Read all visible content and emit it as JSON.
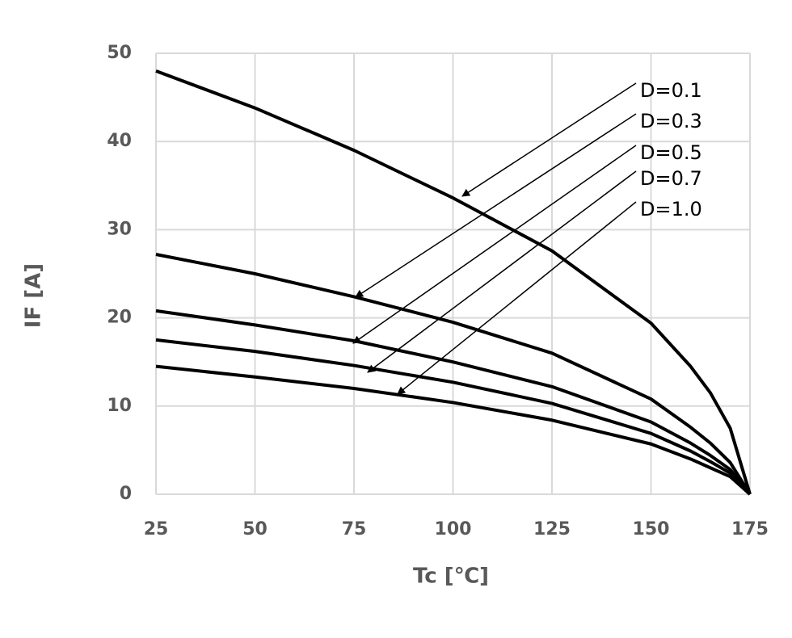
{
  "chart_data": {
    "type": "line",
    "x_label": "Tc  [℃]",
    "y_label": "IF  [A]",
    "x": [
      25,
      50,
      75,
      100,
      125,
      150,
      160,
      165,
      170,
      175
    ],
    "series": [
      {
        "name": "D=0.1",
        "color": "#000000",
        "values": [
          48,
          43.8,
          39,
          33.6,
          27.6,
          19.4,
          14.5,
          11.5,
          7.5,
          0
        ]
      },
      {
        "name": "D=0.3",
        "color": "#000000",
        "values": [
          27.2,
          25,
          22.4,
          19.5,
          16,
          10.8,
          7.6,
          5.8,
          3.6,
          0
        ]
      },
      {
        "name": "D=0.5",
        "color": "#000000",
        "values": [
          20.8,
          19.2,
          17.4,
          15,
          12.2,
          8.2,
          5.8,
          4.4,
          2.8,
          0
        ]
      },
      {
        "name": "D=0.7",
        "color": "#000000",
        "values": [
          17.5,
          16.2,
          14.6,
          12.7,
          10.3,
          6.9,
          4.9,
          3.7,
          2.4,
          0
        ]
      },
      {
        "name": "D=1.0",
        "color": "#000000",
        "values": [
          14.5,
          13.3,
          12,
          10.4,
          8.4,
          5.7,
          4,
          3,
          2,
          0
        ]
      }
    ],
    "xlim": [
      25,
      175
    ],
    "xticks": [
      25,
      50,
      75,
      100,
      125,
      150,
      175
    ],
    "ylim": [
      0,
      50
    ],
    "yticks": [
      0,
      10,
      20,
      30,
      40,
      50
    ],
    "grid": true
  }
}
